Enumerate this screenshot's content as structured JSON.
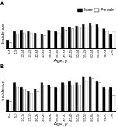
{
  "chart_data": [
    {
      "type": "bar",
      "title": "A",
      "x_label": "Age, y",
      "y_label": "Incidence",
      "categories": [
        "0-4",
        "5-9",
        "10-14",
        "15-19",
        "20-24",
        "25-29",
        "30-34",
        "35-39",
        "40-44",
        "45-49",
        "50-54",
        "55-59",
        "60-64",
        "65-69",
        "70-74",
        "≥75"
      ],
      "series": [
        {
          "name": "Male",
          "color": "#000000",
          "values": [
            3,
            6,
            6.5,
            6,
            5.5,
            5,
            6.5,
            6,
            7.5,
            7.5,
            8,
            8.5,
            9,
            8.5,
            7,
            5
          ]
        },
        {
          "name": "Female",
          "color": "#ffffff",
          "values": [
            2,
            5,
            5.5,
            5.5,
            5,
            4.5,
            6,
            5.5,
            6.5,
            7,
            7.5,
            7.5,
            8,
            7.5,
            6,
            6
          ]
        }
      ],
      "ylim": [
        0,
        10
      ],
      "tick_labels": "x",
      "grid": false,
      "legend": "top-right"
    },
    {
      "type": "bar",
      "title": "B",
      "x_label": "Age, y",
      "y_label": "Incidence",
      "categories": [
        "0-4",
        "5-9",
        "10-14",
        "15-19",
        "20-24",
        "25-29",
        "30-34",
        "35-39",
        "40-44",
        "45-49",
        "50-54",
        "55-59",
        "60-64",
        "65-69",
        "70-74",
        "≥75"
      ],
      "series": [
        {
          "color": "#000000",
          "values": [
            3,
            7,
            6,
            5,
            5.5,
            7,
            6.5,
            6,
            7,
            7.5,
            7,
            8.5,
            8.5,
            7.5,
            6,
            6
          ]
        },
        {
          "color": "#ffffff",
          "values": [
            2.5,
            6,
            5.5,
            4.5,
            5,
            6.5,
            6,
            5.5,
            6.5,
            6.5,
            6.5,
            7.5,
            8,
            7,
            5.5,
            4
          ]
        }
      ],
      "ylim": [
        0,
        10
      ],
      "tick_labels": "x",
      "grid": false
    }
  ]
}
